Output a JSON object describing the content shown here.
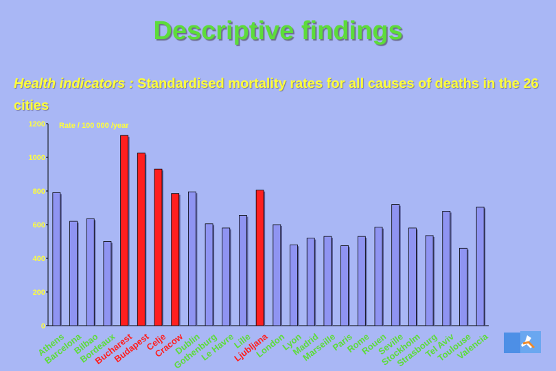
{
  "slide": {
    "title": "Descriptive findings",
    "subtitle_lead": "Health indicators :",
    "subtitle_rest": " Standardised mortality rates for all causes of deaths in the 26 cities"
  },
  "colors": {
    "background": "#a9b7f5",
    "title": "#5ddc3a",
    "subtitle": "#ffff3a",
    "bar_default": "#8f94f2",
    "bar_highlight": "#ff1f1f",
    "axis_text": "#ffff3a",
    "city_label": "#5ddc3a"
  },
  "logo_icon": "runner-logo-icon",
  "chart_data": {
    "type": "bar",
    "ylabel": "Rate / 100 000 /year",
    "ylim": [
      0,
      1200
    ],
    "yticks": [
      0,
      200,
      400,
      600,
      800,
      1000,
      1200
    ],
    "grid": false,
    "categories": [
      "Athens",
      "Barcelona",
      "Bilbao",
      "Bordeaux",
      "Bucharest",
      "Budapest",
      "Celje",
      "Cracow",
      "Dublin",
      "Gothenburg",
      "Le Havre",
      "Lille",
      "Ljubljana",
      "London",
      "Lyon",
      "Madrid",
      "Marseille",
      "Paris",
      "Rome",
      "Rouen",
      "Seville",
      "Stockholm",
      "Strasbourg",
      "Tel Aviv",
      "Toulouse",
      "Valencia"
    ],
    "values": [
      790,
      620,
      635,
      500,
      1130,
      1025,
      930,
      785,
      795,
      605,
      580,
      655,
      805,
      600,
      480,
      520,
      530,
      475,
      530,
      585,
      720,
      580,
      535,
      680,
      460,
      705
    ],
    "highlight": [
      false,
      false,
      false,
      false,
      true,
      true,
      true,
      true,
      false,
      false,
      false,
      false,
      true,
      false,
      false,
      false,
      false,
      false,
      false,
      false,
      false,
      false,
      false,
      false,
      false,
      false
    ]
  }
}
